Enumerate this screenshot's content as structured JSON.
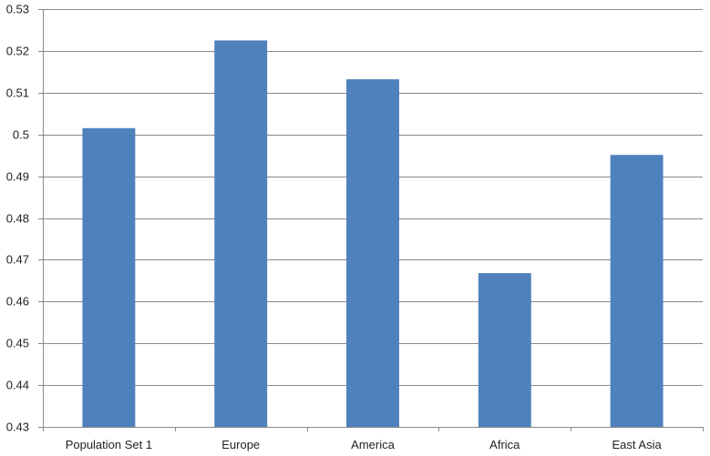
{
  "chart_data": {
    "type": "bar",
    "categories": [
      "Population Set 1",
      "Europe",
      "America",
      "Africa",
      "East Asia"
    ],
    "values": [
      0.5015,
      0.5225,
      0.5132,
      0.4668,
      0.4951
    ],
    "ylim": [
      0.43,
      0.53
    ],
    "yticks": [
      "0.43",
      "0.44",
      "0.45",
      "0.46",
      "0.47",
      "0.48",
      "0.49",
      "0.5",
      "0.51",
      "0.52",
      "0.53"
    ],
    "grid": true,
    "legend": "none",
    "colors": {
      "bar": "#4F81BD",
      "grid": "#898989",
      "axis": "#898989"
    }
  }
}
